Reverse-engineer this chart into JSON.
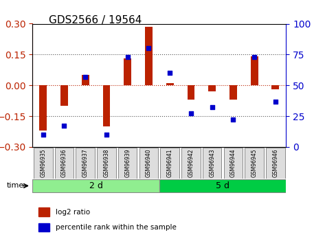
{
  "title": "GDS2566 / 19564",
  "samples": [
    "GSM96935",
    "GSM96936",
    "GSM96937",
    "GSM96938",
    "GSM96939",
    "GSM96940",
    "GSM96941",
    "GSM96942",
    "GSM96943",
    "GSM96944",
    "GSM96945",
    "GSM96946"
  ],
  "log2_ratio": [
    -0.22,
    -0.1,
    0.05,
    -0.2,
    0.13,
    0.285,
    0.01,
    -0.07,
    -0.03,
    -0.07,
    0.14,
    -0.02
  ],
  "percentile_rank": [
    10,
    17,
    57,
    10,
    73,
    80,
    60,
    27,
    32,
    22,
    73,
    37
  ],
  "groups": [
    {
      "label": "2 d",
      "start": 0,
      "end": 6,
      "color": "#90EE90"
    },
    {
      "label": "5 d",
      "start": 6,
      "end": 12,
      "color": "#00CC44"
    }
  ],
  "ylim_left": [
    -0.3,
    0.3
  ],
  "ylim_right": [
    0,
    100
  ],
  "yticks_left": [
    -0.3,
    -0.15,
    0,
    0.15,
    0.3
  ],
  "yticks_right": [
    0,
    25,
    50,
    75,
    100
  ],
  "bar_color": "#BB2200",
  "dot_color": "#0000CC",
  "hline_color": "#BB2200",
  "dotted_color": "#555555",
  "bg_color": "#FFFFFF",
  "time_label": "time",
  "legend_log2": "log2 ratio",
  "legend_pct": "percentile rank within the sample"
}
